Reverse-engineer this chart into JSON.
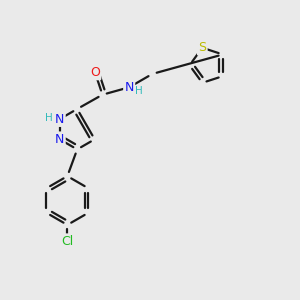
{
  "bg_color": "#eaeaea",
  "bond_color": "#1a1a1a",
  "bond_lw": 1.6,
  "dbo": 0.012,
  "shorten": 0.015,
  "label_colors": {
    "N": "#1a1aee",
    "NH": "#1a1aee",
    "H": "#33bbbb",
    "O": "#ee1a1a",
    "S": "#bbbb00",
    "Cl": "#22bb22"
  },
  "fs": 9.0,
  "fs_small": 7.5
}
